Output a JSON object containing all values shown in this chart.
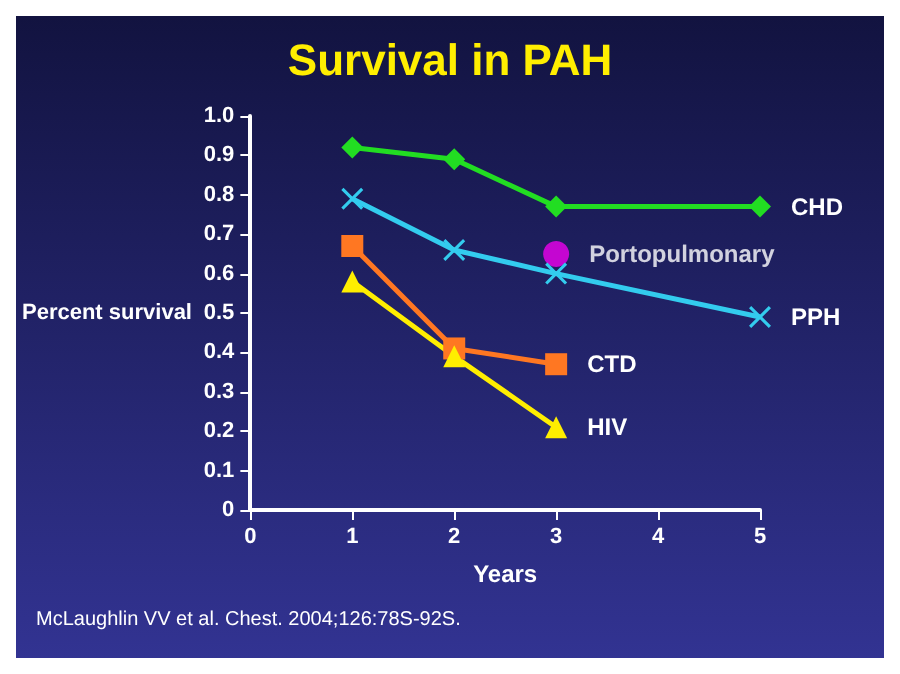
{
  "chart_data": {
    "type": "line",
    "title": "Survival in PAH",
    "xlabel": "Years",
    "ylabel": "Percent survival",
    "annotations": [
      "McLaughlin VV et al. Chest. 2004;126:78S-92S."
    ],
    "series": [
      {
        "name": "CHD",
        "color": "#22dd22",
        "marker": "diamond",
        "x": [
          1,
          2,
          3,
          5
        ],
        "values": [
          0.92,
          0.89,
          0.77,
          0.77
        ]
      },
      {
        "name": "PPH",
        "color": "#33ccee",
        "marker": "cross",
        "x": [
          1,
          2,
          3,
          5
        ],
        "values": [
          0.79,
          0.66,
          0.6,
          0.49
        ]
      },
      {
        "name": "CTD",
        "color": "#ff7722",
        "marker": "square",
        "x": [
          1,
          2,
          3
        ],
        "values": [
          0.67,
          0.41,
          0.37
        ]
      },
      {
        "name": "HIV",
        "color": "#ffee00",
        "marker": "triangle",
        "x": [
          1,
          2,
          3
        ],
        "values": [
          0.58,
          0.39,
          0.21
        ]
      },
      {
        "name": "Portopulmonary",
        "type": "scatter",
        "color": "#ee00ee",
        "marker": "circle",
        "x": [
          3
        ],
        "values": [
          0.65
        ]
      }
    ],
    "xlim": [
      0,
      5
    ],
    "xticks": [
      0,
      1,
      2,
      3,
      4,
      5
    ],
    "ylim": [
      0,
      1
    ],
    "yticks": [
      0,
      0.1,
      0.2,
      0.3,
      0.4,
      0.5,
      0.6,
      0.7,
      0.8,
      0.9,
      {
        "value": 1,
        "label": "1.0"
      }
    ],
    "grid": false,
    "legend": false
  }
}
